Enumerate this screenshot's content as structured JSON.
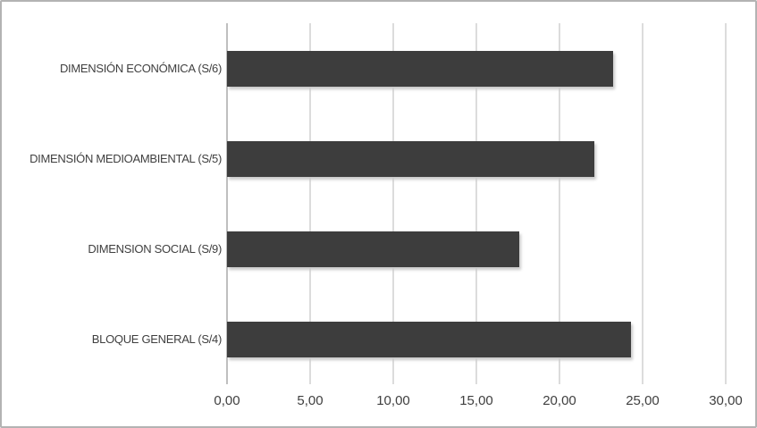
{
  "chart_data": {
    "type": "bar",
    "orientation": "horizontal",
    "title": "",
    "xlabel": "",
    "ylabel": "",
    "categories": [
      "DIMENSIÓN ECONÓMICA (S/6)",
      "DIMENSIÓN MEDIOAMBIENTAL (S/5)",
      "DIMENSION SOCIAL (S/9)",
      "BLOQUE GENERAL (S/4)"
    ],
    "values": [
      23.2,
      22.1,
      17.6,
      24.3
    ],
    "xlim": [
      0,
      30
    ],
    "x_ticks": [
      0,
      5,
      10,
      15,
      20,
      25,
      30
    ],
    "x_tick_labels": [
      "0,00",
      "5,00",
      "10,00",
      "15,00",
      "20,00",
      "25,00",
      "30,00"
    ],
    "grid": "vertical-major-on",
    "legend": "none",
    "data_labels": "none",
    "colors": {
      "bar_fill": "#3d3d3d",
      "gridline": "#dcdcdc",
      "category_axis_line": "#bfbfbf",
      "text": "#3f3f3f",
      "frame_border": "#b3b3b3",
      "background": "#ffffff"
    }
  }
}
